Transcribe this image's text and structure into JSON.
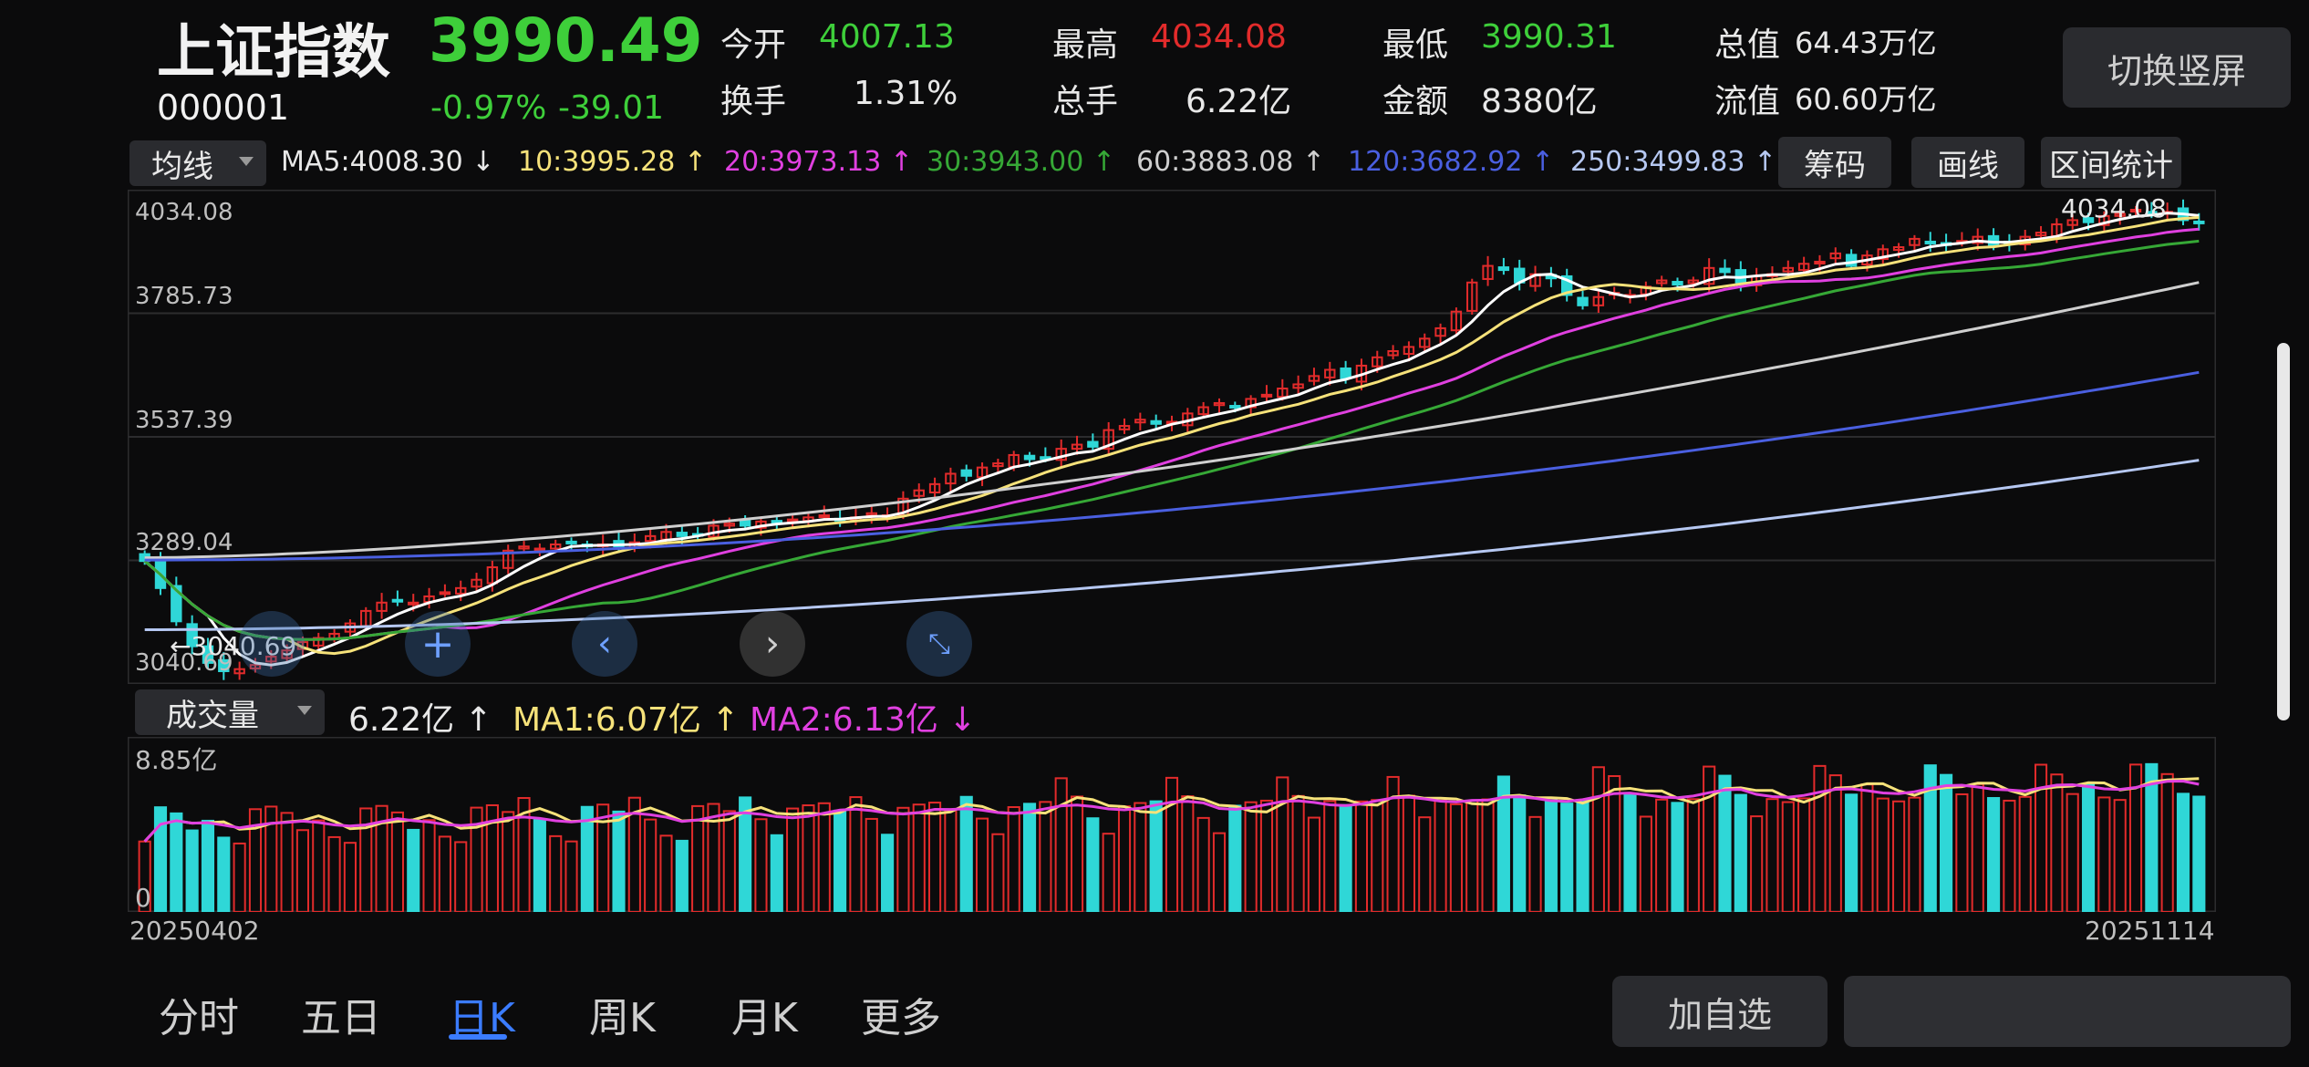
{
  "header": {
    "name": "上证指数",
    "code": "000001",
    "price": "3990.49",
    "change_pct": "-0.97%",
    "change": "-39.01",
    "stats": [
      {
        "label": "今开",
        "value": "4007.13",
        "color": "#3ecf3a"
      },
      {
        "label": "最高",
        "value": "4034.08",
        "color": "#e22b2b"
      },
      {
        "label": "最低",
        "value": "3990.31",
        "color": "#3ecf3a"
      },
      {
        "label": "总值",
        "value": "64.43万亿",
        "color": "#e8e8e8"
      },
      {
        "label": "换手",
        "value": "1.31%",
        "color": "#e8e8e8"
      },
      {
        "label": "总手",
        "value": "6.22亿",
        "color": "#e8e8e8"
      },
      {
        "label": "金额",
        "value": "8380亿",
        "color": "#e8e8e8"
      },
      {
        "label": "流值",
        "value": "60.60万亿",
        "color": "#e8e8e8"
      }
    ],
    "switch_button": "切换竖屏"
  },
  "ma_bar": {
    "selector": "均线",
    "items": [
      {
        "text": "MA5:4008.30 ↓",
        "color": "#e8e8e8"
      },
      {
        "text": "10:3995.28 ↑",
        "color": "#f6e27a"
      },
      {
        "text": "20:3973.13 ↑",
        "color": "#e040e0"
      },
      {
        "text": "30:3943.00 ↑",
        "color": "#36a836"
      },
      {
        "text": "60:3883.08 ↑",
        "color": "#cfcfcf"
      },
      {
        "text": "120:3682.92 ↑",
        "color": "#4a5fe0"
      },
      {
        "text": "250:3499.83 ↑",
        "color": "#b6c8f2"
      }
    ],
    "buttons": [
      "筹码",
      "画线",
      "区间统计"
    ]
  },
  "price_axis": [
    "4034.08",
    "3785.73",
    "3537.39",
    "3289.04",
    "3040.69"
  ],
  "annotations": {
    "high": "4034.08",
    "low": "←3040.69"
  },
  "volume_bar": {
    "selector": "成交量",
    "items": [
      {
        "text": "6.22亿 ↑",
        "color": "#e8e8e8"
      },
      {
        "text": "MA1:6.07亿 ↑",
        "color": "#f6e27a"
      },
      {
        "text": "MA2:6.13亿 ↓",
        "color": "#e040e0"
      }
    ],
    "axis_top": "8.85亿",
    "axis_zero": "0"
  },
  "dates": {
    "start": "20250402",
    "end": "20251114"
  },
  "bottom_tabs": [
    "分时",
    "五日",
    "日K",
    "周K",
    "月K",
    "更多"
  ],
  "active_tab": "日K",
  "bottom_buttons": {
    "add": "加自选",
    "other": ""
  },
  "chart_data": {
    "type": "candlestick",
    "ylim": [
      3040.69,
      4034.08
    ],
    "start": 3290,
    "steps": [
      -45,
      -65,
      -80,
      -60,
      -40,
      -20,
      5,
      10,
      20,
      15,
      20,
      10,
      10,
      25,
      30,
      20,
      5,
      -5,
      15,
      10,
      10,
      20,
      30,
      40,
      10,
      -5,
      10,
      5,
      -10,
      5,
      -5,
      10,
      15,
      10,
      -10,
      5,
      20,
      5,
      -5,
      10,
      -5,
      10,
      5,
      5,
      -10,
      5,
      10,
      -5,
      40,
      20,
      15,
      25,
      -5,
      20,
      10,
      20,
      -10,
      5,
      20,
      10,
      -5,
      40,
      10,
      15,
      -10,
      5,
      20,
      15,
      10,
      -10,
      20,
      10,
      15,
      10,
      20,
      15,
      -20,
      30,
      20,
      15,
      10,
      20,
      25,
      40,
      70,
      40,
      -10,
      -30,
      20,
      -10,
      -40,
      -25,
      20,
      10,
      -5,
      20,
      15,
      -10,
      10,
      30,
      -10,
      -25,
      15,
      5,
      15,
      10,
      5,
      20,
      -30,
      25,
      15,
      5,
      20,
      -10,
      -5,
      10,
      10,
      -20,
      5,
      15,
      10,
      20,
      10,
      -5,
      15,
      5,
      10,
      -10,
      5,
      -20,
      -5
    ],
    "volume_ylim": [
      0,
      8.85
    ],
    "volume_last": 6.22
  }
}
